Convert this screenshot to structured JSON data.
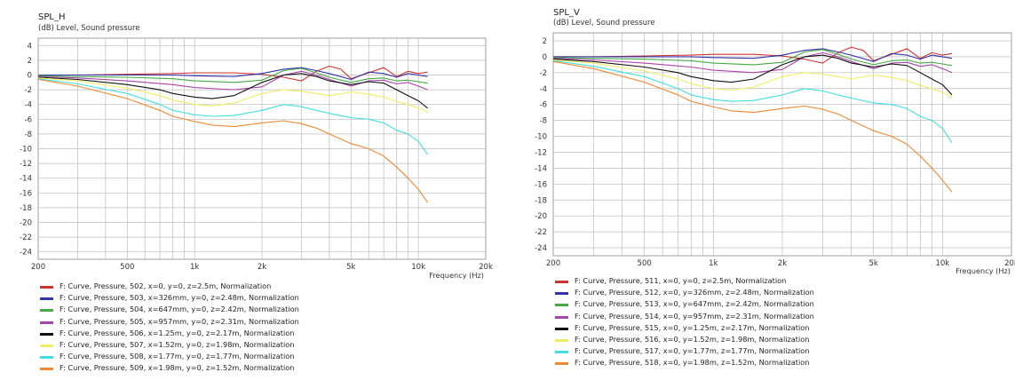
{
  "chart_data": [
    {
      "type": "line",
      "title": "SPL_H",
      "subtitle": "(dB)  Level, Sound pressure",
      "xlabel": "Frequency  (Hz)",
      "ylabel": "(dB)  Level, Sound pressure",
      "x_scale": "log",
      "xlim": [
        200,
        20000
      ],
      "ylim": [
        -25,
        5
      ],
      "yticks": [
        "4",
        "2",
        "0",
        "-2",
        "-4",
        "-6",
        "-8",
        "-10",
        "-12",
        "-14",
        "-16",
        "-18",
        "-20",
        "-22",
        "-24"
      ],
      "yticks_values": [
        4,
        2,
        0,
        -2,
        -4,
        -6,
        -8,
        -10,
        -12,
        -14,
        -16,
        -18,
        -20,
        -22,
        -24
      ],
      "xticks": [
        "200",
        "500",
        "1k",
        "2k",
        "5k",
        "10k",
        "20k"
      ],
      "xticks_values": [
        200,
        500,
        1000,
        2000,
        5000,
        10000,
        20000
      ],
      "grid": true,
      "legend_position": "bottom",
      "series": [
        {
          "name": "F: Curve, Pressure, 502, x=0, y=0, z=2.5m, Normalization",
          "color": "#cc3333",
          "x": [
            200,
            300,
            500,
            800,
            1000,
            1500,
            2000,
            2500,
            3000,
            3500,
            4000,
            4500,
            5000,
            6000,
            7000,
            8000,
            9000,
            10000,
            11000
          ],
          "y": [
            0,
            0,
            0.1,
            0.2,
            0.3,
            0.3,
            0.1,
            -0.3,
            -0.8,
            0.5,
            1.2,
            0.8,
            -0.5,
            0.3,
            1.0,
            -0.2,
            0.5,
            0.2,
            0.4
          ]
        },
        {
          "name": "F: Curve, Pressure, 503, x=326mm, y=0, z=2.48m, Normalization",
          "color": "#3333aa",
          "x": [
            200,
            300,
            500,
            800,
            1000,
            1500,
            2000,
            2500,
            3000,
            3500,
            4000,
            5000,
            6000,
            7000,
            8000,
            9000,
            10000,
            11000
          ],
          "y": [
            0,
            0,
            0,
            0,
            -0.1,
            -0.2,
            0.2,
            0.8,
            1.0,
            0.6,
            0.2,
            -0.6,
            0.4,
            0.2,
            -0.3,
            0.2,
            0.0,
            -0.2
          ]
        },
        {
          "name": "F: Curve, Pressure, 504, x=647mm, y=0, z=2.42m, Normalization",
          "color": "#44aa44",
          "x": [
            200,
            300,
            500,
            800,
            1000,
            1500,
            2000,
            2500,
            3000,
            3500,
            4000,
            5000,
            6000,
            7000,
            8000,
            9000,
            10000,
            11000
          ],
          "y": [
            -0.1,
            -0.2,
            -0.3,
            -0.5,
            -0.8,
            -1.0,
            -0.7,
            0.6,
            0.9,
            0.3,
            -0.3,
            -1.0,
            -0.5,
            -0.4,
            -0.8,
            -0.7,
            -0.9,
            -1.1
          ]
        },
        {
          "name": "F: Curve, Pressure, 505, x=957mm, y=0, z=2.31m, Normalization",
          "color": "#aa44aa",
          "x": [
            200,
            300,
            500,
            800,
            1000,
            1500,
            2000,
            2500,
            3000,
            3500,
            4000,
            5000,
            6000,
            7000,
            8000,
            9000,
            10000,
            11000
          ],
          "y": [
            -0.2,
            -0.4,
            -0.8,
            -1.3,
            -1.7,
            -2.0,
            -1.6,
            0.0,
            0.5,
            0.0,
            -0.6,
            -1.5,
            -0.8,
            -0.7,
            -1.2,
            -1.0,
            -1.5,
            -2.0
          ]
        },
        {
          "name": "F: Curve, Pressure, 506, x=1.25m, y=0, z=2.17m, Normalization",
          "color": "#111111",
          "x": [
            200,
            300,
            500,
            700,
            800,
            1000,
            1200,
            1500,
            2000,
            2500,
            3000,
            3500,
            4000,
            5000,
            6000,
            7000,
            8000,
            9000,
            10000,
            11000
          ],
          "y": [
            -0.3,
            -0.6,
            -1.3,
            -2.0,
            -2.5,
            -3.0,
            -3.2,
            -2.8,
            -1.0,
            0.0,
            0.2,
            -0.2,
            -0.8,
            -1.3,
            -0.9,
            -1.1,
            -2.0,
            -2.8,
            -3.5,
            -4.5
          ]
        },
        {
          "name": "F: Curve, Pressure, 507, x=1.52m, y=0, z=1.98m, Normalization",
          "color": "#eeee66",
          "x": [
            200,
            300,
            500,
            700,
            800,
            1000,
            1200,
            1500,
            2000,
            2500,
            3000,
            3500,
            4000,
            5000,
            6000,
            7000,
            8000,
            9000,
            10000,
            11000
          ],
          "y": [
            -0.4,
            -0.8,
            -1.8,
            -2.8,
            -3.4,
            -4.0,
            -4.2,
            -3.8,
            -2.5,
            -2.0,
            -2.2,
            -2.5,
            -2.8,
            -2.3,
            -2.6,
            -3.0,
            -3.6,
            -4.0,
            -4.5,
            -5.0
          ]
        },
        {
          "name": "F: Curve, Pressure, 508, x=1.77m, y=0, z=1.77m, Normalization",
          "color": "#44dddd",
          "x": [
            200,
            300,
            500,
            700,
            800,
            1000,
            1200,
            1500,
            2000,
            2500,
            3000,
            3500,
            4000,
            5000,
            6000,
            7000,
            8000,
            9000,
            10000,
            11000
          ],
          "y": [
            -0.5,
            -1.2,
            -2.5,
            -4.0,
            -4.8,
            -5.4,
            -5.6,
            -5.5,
            -4.8,
            -4.0,
            -4.3,
            -4.8,
            -5.2,
            -5.8,
            -6.0,
            -6.5,
            -7.5,
            -8.0,
            -9.0,
            -10.8
          ]
        },
        {
          "name": "F: Curve, Pressure, 509, x=1.98m, y=0, z=1.52m, Normalization",
          "color": "#ee8833",
          "x": [
            200,
            300,
            500,
            700,
            800,
            1000,
            1200,
            1500,
            2000,
            2500,
            3000,
            3500,
            4000,
            5000,
            6000,
            7000,
            8000,
            9000,
            10000,
            11000
          ],
          "y": [
            -0.6,
            -1.5,
            -3.2,
            -4.8,
            -5.6,
            -6.3,
            -6.8,
            -7.0,
            -6.5,
            -6.2,
            -6.6,
            -7.2,
            -8.0,
            -9.3,
            -10.0,
            -11.0,
            -12.5,
            -14.0,
            -15.5,
            -17.3
          ]
        }
      ]
    },
    {
      "type": "line",
      "title": "SPL_V",
      "subtitle": "(dB)  Level, Sound pressure",
      "xlabel": "Frequency  (Hz)",
      "ylabel": "(dB)  Level, Sound pressure",
      "x_scale": "log",
      "xlim": [
        200,
        20000
      ],
      "ylim": [
        -25,
        3
      ],
      "yticks": [
        "2",
        "0",
        "-2",
        "-4",
        "-6",
        "-8",
        "-10",
        "-12",
        "-14",
        "-16",
        "-18",
        "-20",
        "-22",
        "-24"
      ],
      "yticks_values": [
        2,
        0,
        -2,
        -4,
        -6,
        -8,
        -10,
        -12,
        -14,
        -16,
        -18,
        -20,
        -22,
        -24
      ],
      "xticks": [
        "200",
        "500",
        "1k",
        "2k",
        "5k",
        "10k",
        "20k"
      ],
      "xticks_values": [
        200,
        500,
        1000,
        2000,
        5000,
        10000,
        20000
      ],
      "grid": true,
      "legend_position": "bottom",
      "series": [
        {
          "name": "F: Curve, Pressure, 511, x=0, y=0, z=2.5m, Normalization",
          "color": "#cc3333",
          "x": [
            200,
            300,
            500,
            800,
            1000,
            1500,
            2000,
            2500,
            3000,
            3500,
            4000,
            4500,
            5000,
            6000,
            7000,
            8000,
            9000,
            10000,
            11000
          ],
          "y": [
            0,
            0,
            0.1,
            0.2,
            0.3,
            0.3,
            0.1,
            -0.3,
            -0.8,
            0.5,
            1.2,
            0.8,
            -0.5,
            0.3,
            1.0,
            -0.2,
            0.5,
            0.2,
            0.4
          ]
        },
        {
          "name": "F: Curve, Pressure, 512, x=0, y=326mm, z=2.48m, Normalization",
          "color": "#3333aa",
          "x": [
            200,
            300,
            500,
            800,
            1000,
            1500,
            2000,
            2500,
            3000,
            3500,
            4000,
            5000,
            6000,
            7000,
            8000,
            9000,
            10000,
            11000
          ],
          "y": [
            0,
            0,
            0,
            0,
            -0.1,
            -0.2,
            0.2,
            0.8,
            1.0,
            0.6,
            0.2,
            -0.6,
            0.4,
            0.2,
            -0.3,
            0.2,
            0.0,
            -0.2
          ]
        },
        {
          "name": "F: Curve, Pressure, 513, x=0, y=647mm, z=2.42m, Normalization",
          "color": "#44aa44",
          "x": [
            200,
            300,
            500,
            800,
            1000,
            1500,
            2000,
            2500,
            3000,
            3500,
            4000,
            5000,
            6000,
            7000,
            8000,
            9000,
            10000,
            11000
          ],
          "y": [
            -0.1,
            -0.2,
            -0.3,
            -0.5,
            -0.8,
            -1.0,
            -0.7,
            0.6,
            0.9,
            0.3,
            -0.3,
            -1.0,
            -0.5,
            -0.4,
            -0.8,
            -0.7,
            -0.9,
            -1.1
          ]
        },
        {
          "name": "F: Curve, Pressure, 514, x=0, y=957mm, z=2.31m, Normalization",
          "color": "#aa44aa",
          "x": [
            200,
            300,
            500,
            800,
            1000,
            1500,
            2000,
            2500,
            3000,
            3500,
            4000,
            5000,
            6000,
            7000,
            8000,
            9000,
            10000,
            11000
          ],
          "y": [
            -0.2,
            -0.4,
            -0.8,
            -1.3,
            -1.7,
            -2.0,
            -1.6,
            0.0,
            0.5,
            0.0,
            -0.6,
            -1.5,
            -0.8,
            -0.7,
            -1.2,
            -1.0,
            -1.5,
            -2.0
          ]
        },
        {
          "name": "F: Curve, Pressure, 515, x=0, y=1.25m, z=2.17m, Normalization",
          "color": "#111111",
          "x": [
            200,
            300,
            500,
            700,
            800,
            1000,
            1200,
            1500,
            2000,
            2500,
            3000,
            3500,
            4000,
            5000,
            6000,
            7000,
            8000,
            9000,
            10000,
            11000
          ],
          "y": [
            -0.3,
            -0.6,
            -1.3,
            -2.0,
            -2.5,
            -3.0,
            -3.2,
            -2.8,
            -1.0,
            0.0,
            0.2,
            -0.2,
            -0.8,
            -1.3,
            -0.9,
            -1.1,
            -2.0,
            -2.8,
            -3.5,
            -4.8
          ]
        },
        {
          "name": "F: Curve, Pressure, 516, x=0, y=1.52m, z=1.98m, Normalization",
          "color": "#eeee66",
          "x": [
            200,
            300,
            500,
            700,
            800,
            1000,
            1200,
            1500,
            2000,
            2500,
            3000,
            3500,
            4000,
            5000,
            6000,
            7000,
            8000,
            9000,
            10000,
            11000
          ],
          "y": [
            -0.4,
            -0.8,
            -1.8,
            -2.8,
            -3.4,
            -4.0,
            -4.2,
            -3.8,
            -2.5,
            -2.0,
            -2.2,
            -2.5,
            -2.8,
            -2.3,
            -2.6,
            -3.0,
            -3.6,
            -4.0,
            -4.5,
            -5.0
          ]
        },
        {
          "name": "F: Curve, Pressure, 517, x=0, y=1.77m, z=1.77m, Normalization",
          "color": "#44dddd",
          "x": [
            200,
            300,
            500,
            700,
            800,
            1000,
            1200,
            1500,
            2000,
            2500,
            3000,
            3500,
            4000,
            5000,
            6000,
            7000,
            8000,
            9000,
            10000,
            11000
          ],
          "y": [
            -0.5,
            -1.2,
            -2.5,
            -4.0,
            -4.8,
            -5.4,
            -5.6,
            -5.5,
            -4.8,
            -4.0,
            -4.3,
            -4.8,
            -5.2,
            -5.8,
            -6.0,
            -6.5,
            -7.5,
            -8.0,
            -9.0,
            -10.8
          ]
        },
        {
          "name": "F: Curve, Pressure, 518, x=0, y=1.98m, z=1.52m, Normalization",
          "color": "#ee8833",
          "x": [
            200,
            300,
            500,
            700,
            800,
            1000,
            1200,
            1500,
            2000,
            2500,
            3000,
            3500,
            4000,
            5000,
            6000,
            7000,
            8000,
            9000,
            10000,
            11000
          ],
          "y": [
            -0.6,
            -1.5,
            -3.2,
            -4.8,
            -5.6,
            -6.3,
            -6.8,
            -7.0,
            -6.5,
            -6.2,
            -6.6,
            -7.2,
            -8.0,
            -9.3,
            -10.0,
            -11.0,
            -12.5,
            -14.0,
            -15.5,
            -17.0
          ]
        }
      ]
    }
  ]
}
